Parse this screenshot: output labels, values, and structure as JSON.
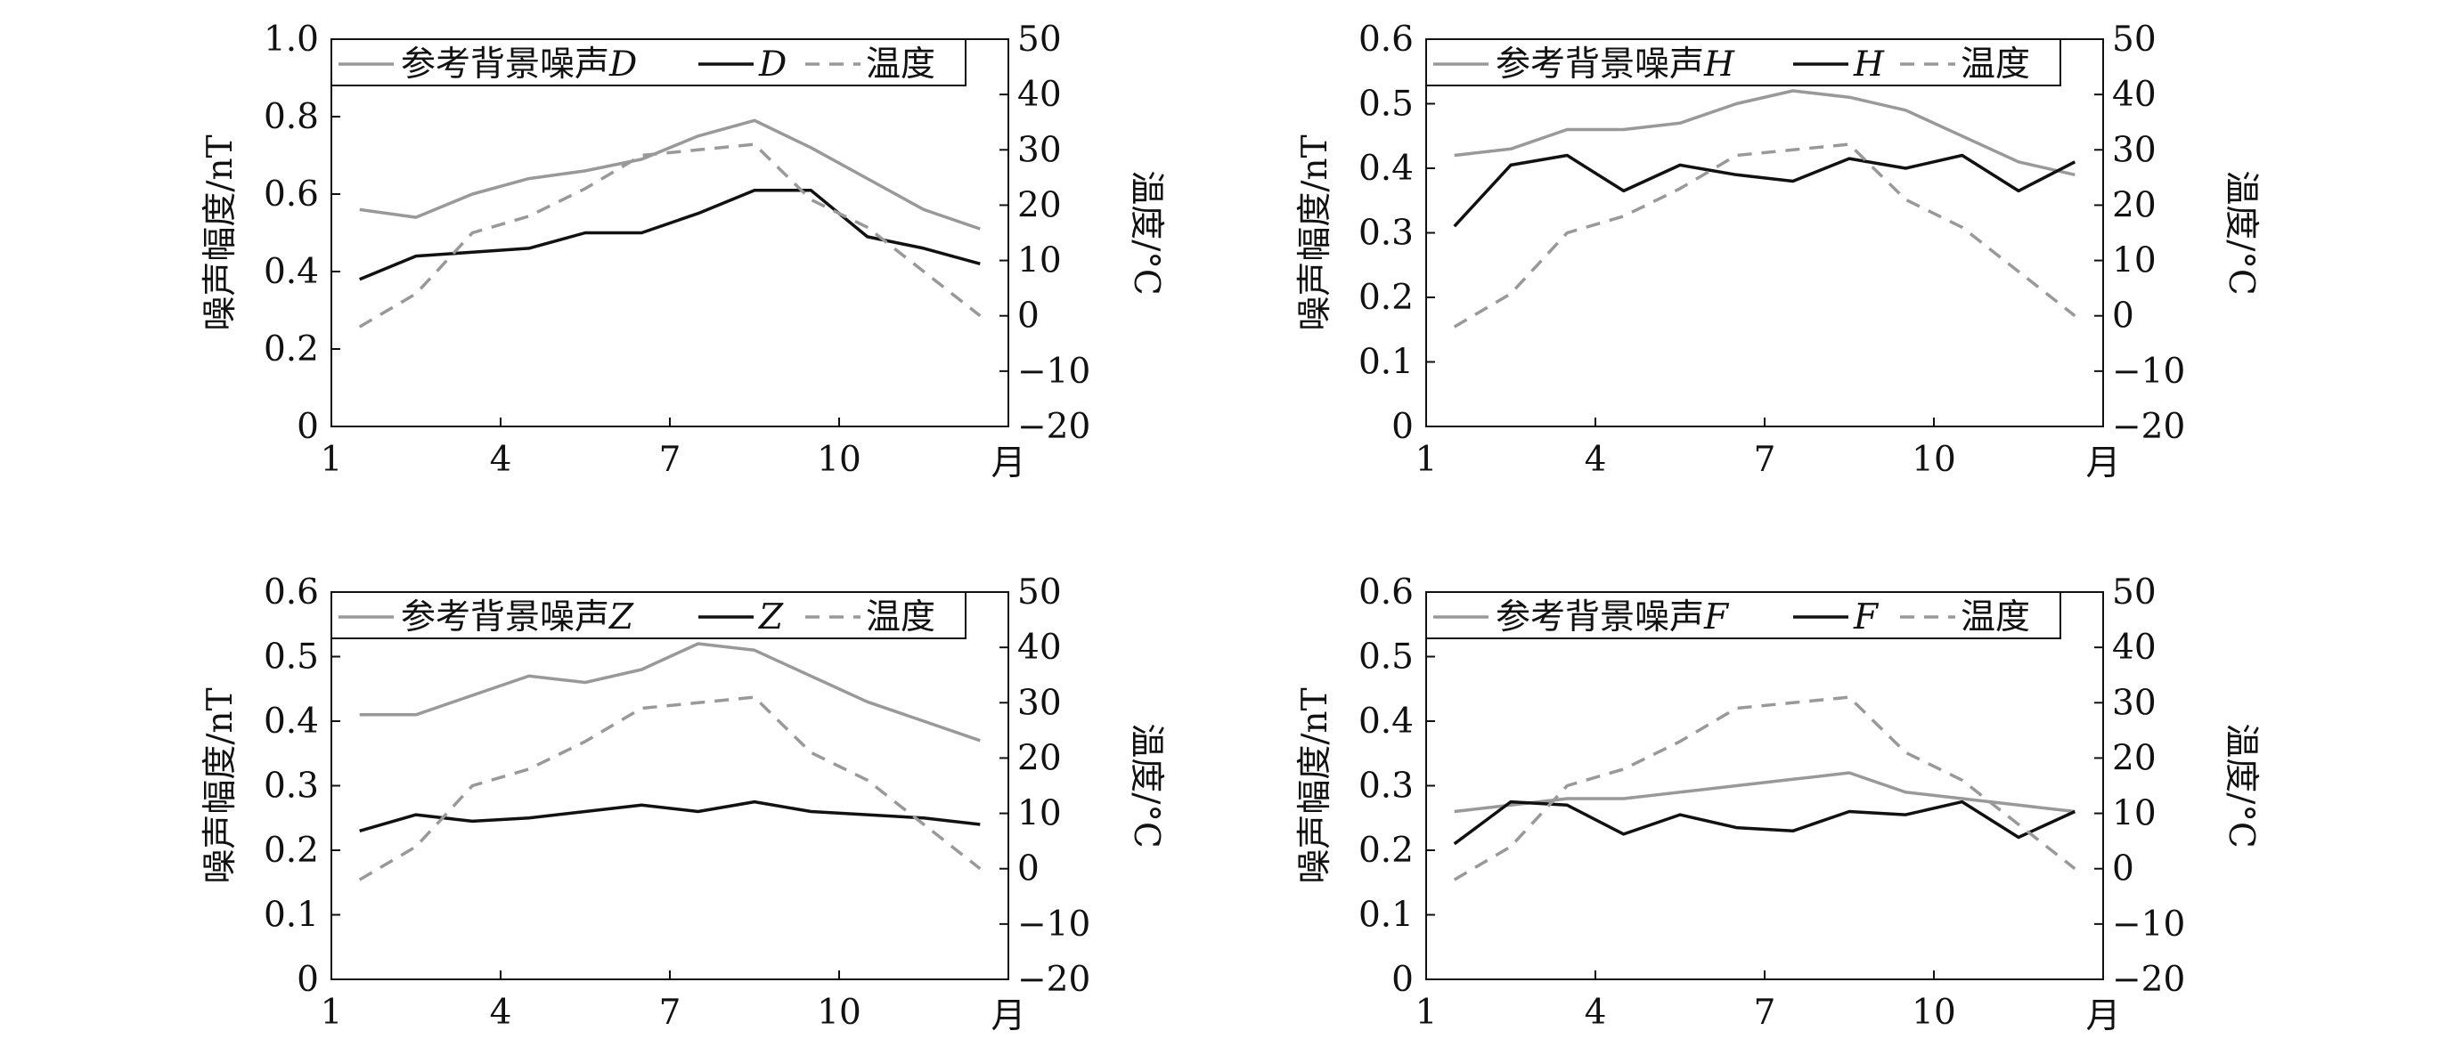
{
  "chart_data": [
    {
      "type": "line",
      "component": "D",
      "y_left_label": "噪声幅度/nT",
      "y_right_label": "温度/°C",
      "x_unit_label": "月",
      "ylim_left": [
        0,
        1.0
      ],
      "ylim_right": [
        -20,
        50
      ],
      "xlim": [
        1,
        13
      ],
      "x_ticks": [
        1,
        4,
        7,
        10
      ],
      "y_left_ticks": [
        "0",
        "0.2",
        "0.4",
        "0.6",
        "0.8",
        "1.0"
      ],
      "y_left_tick_values": [
        0,
        0.2,
        0.4,
        0.6,
        0.8,
        1.0
      ],
      "y_right_ticks": [
        "−20",
        "−10",
        "0",
        "10",
        "20",
        "30",
        "40",
        "50"
      ],
      "y_right_tick_values": [
        -20,
        -10,
        0,
        10,
        20,
        30,
        40,
        50
      ],
      "x": [
        1.5,
        2.5,
        3.5,
        4.5,
        5.5,
        6.5,
        7.5,
        8.5,
        9.5,
        10.5,
        11.5,
        12.5
      ],
      "legend": [
        "参考背景噪声D",
        "D",
        "温度"
      ],
      "series": [
        {
          "name": "参考背景噪声D",
          "axis": "left",
          "style": "solid",
          "color": "#999999",
          "values": [
            0.56,
            0.54,
            0.6,
            0.64,
            0.66,
            0.69,
            0.75,
            0.79,
            0.72,
            0.64,
            0.56,
            0.51
          ]
        },
        {
          "name": "D",
          "axis": "left",
          "style": "solid",
          "color": "#111111",
          "values": [
            0.38,
            0.44,
            0.45,
            0.46,
            0.5,
            0.5,
            0.55,
            0.61,
            0.61,
            0.49,
            0.46,
            0.42
          ]
        },
        {
          "name": "温度",
          "axis": "right",
          "style": "dashed",
          "color": "#999999",
          "values": [
            -2,
            4,
            15,
            18,
            23,
            29,
            30,
            31,
            21,
            16,
            8,
            0
          ]
        }
      ]
    },
    {
      "type": "line",
      "component": "H",
      "y_left_label": "噪声幅度/nT",
      "y_right_label": "温度/°C",
      "x_unit_label": "月",
      "ylim_left": [
        0,
        0.6
      ],
      "ylim_right": [
        -20,
        50
      ],
      "xlim": [
        1,
        13
      ],
      "x_ticks": [
        1,
        4,
        7,
        10
      ],
      "y_left_ticks": [
        "0",
        "0.1",
        "0.2",
        "0.3",
        "0.4",
        "0.5",
        "0.6"
      ],
      "y_left_tick_values": [
        0,
        0.1,
        0.2,
        0.3,
        0.4,
        0.5,
        0.6
      ],
      "y_right_ticks": [
        "−20",
        "−10",
        "0",
        "10",
        "20",
        "30",
        "40",
        "50"
      ],
      "y_right_tick_values": [
        -20,
        -10,
        0,
        10,
        20,
        30,
        40,
        50
      ],
      "x": [
        1.5,
        2.5,
        3.5,
        4.5,
        5.5,
        6.5,
        7.5,
        8.5,
        9.5,
        10.5,
        11.5,
        12.5
      ],
      "legend": [
        "参考背景噪声H",
        "H",
        "温度"
      ],
      "series": [
        {
          "name": "参考背景噪声H",
          "axis": "left",
          "style": "solid",
          "color": "#999999",
          "values": [
            0.42,
            0.43,
            0.46,
            0.46,
            0.47,
            0.5,
            0.52,
            0.51,
            0.49,
            0.45,
            0.41,
            0.39
          ]
        },
        {
          "name": "H",
          "axis": "left",
          "style": "solid",
          "color": "#111111",
          "values": [
            0.31,
            0.405,
            0.42,
            0.365,
            0.405,
            0.39,
            0.38,
            0.415,
            0.4,
            0.42,
            0.365,
            0.41
          ]
        },
        {
          "name": "温度",
          "axis": "right",
          "style": "dashed",
          "color": "#999999",
          "values": [
            -2,
            4,
            15,
            18,
            23,
            29,
            30,
            31,
            21,
            16,
            8,
            0
          ]
        }
      ]
    },
    {
      "type": "line",
      "component": "Z",
      "y_left_label": "噪声幅度/nT",
      "y_right_label": "温度/°C",
      "x_unit_label": "月",
      "ylim_left": [
        0,
        0.6
      ],
      "ylim_right": [
        -20,
        50
      ],
      "xlim": [
        1,
        13
      ],
      "x_ticks": [
        1,
        4,
        7,
        10
      ],
      "y_left_ticks": [
        "0",
        "0.1",
        "0.2",
        "0.3",
        "0.4",
        "0.5",
        "0.6"
      ],
      "y_left_tick_values": [
        0,
        0.1,
        0.2,
        0.3,
        0.4,
        0.5,
        0.6
      ],
      "y_right_ticks": [
        "−20",
        "−10",
        "0",
        "10",
        "20",
        "30",
        "40",
        "50"
      ],
      "y_right_tick_values": [
        -20,
        -10,
        0,
        10,
        20,
        30,
        40,
        50
      ],
      "x": [
        1.5,
        2.5,
        3.5,
        4.5,
        5.5,
        6.5,
        7.5,
        8.5,
        9.5,
        10.5,
        11.5,
        12.5
      ],
      "legend": [
        "参考背景噪声Z",
        "Z",
        "温度"
      ],
      "series": [
        {
          "name": "参考背景噪声Z",
          "axis": "left",
          "style": "solid",
          "color": "#999999",
          "values": [
            0.41,
            0.41,
            0.44,
            0.47,
            0.46,
            0.48,
            0.52,
            0.51,
            0.47,
            0.43,
            0.4,
            0.37
          ]
        },
        {
          "name": "Z",
          "axis": "left",
          "style": "solid",
          "color": "#111111",
          "values": [
            0.23,
            0.255,
            0.245,
            0.25,
            0.26,
            0.27,
            0.26,
            0.275,
            0.26,
            0.255,
            0.25,
            0.24
          ]
        },
        {
          "name": "温度",
          "axis": "right",
          "style": "dashed",
          "color": "#999999",
          "values": [
            -2,
            4,
            15,
            18,
            23,
            29,
            30,
            31,
            21,
            16,
            8,
            0
          ]
        }
      ]
    },
    {
      "type": "line",
      "component": "F",
      "y_left_label": "噪声幅度/nT",
      "y_right_label": "温度/°C",
      "x_unit_label": "月",
      "ylim_left": [
        0,
        0.6
      ],
      "ylim_right": [
        -20,
        50
      ],
      "xlim": [
        1,
        13
      ],
      "x_ticks": [
        1,
        4,
        7,
        10
      ],
      "y_left_ticks": [
        "0",
        "0.1",
        "0.2",
        "0.3",
        "0.4",
        "0.5",
        "0.6"
      ],
      "y_left_tick_values": [
        0,
        0.1,
        0.2,
        0.3,
        0.4,
        0.5,
        0.6
      ],
      "y_right_ticks": [
        "−20",
        "−10",
        "0",
        "10",
        "20",
        "30",
        "40",
        "50"
      ],
      "y_right_tick_values": [
        -20,
        -10,
        0,
        10,
        20,
        30,
        40,
        50
      ],
      "x": [
        1.5,
        2.5,
        3.5,
        4.5,
        5.5,
        6.5,
        7.5,
        8.5,
        9.5,
        10.5,
        11.5,
        12.5
      ],
      "legend": [
        "参考背景噪声F",
        "F",
        "温度"
      ],
      "series": [
        {
          "name": "参考背景噪声F",
          "axis": "left",
          "style": "solid",
          "color": "#999999",
          "values": [
            0.26,
            0.27,
            0.28,
            0.28,
            0.29,
            0.3,
            0.31,
            0.32,
            0.29,
            0.28,
            0.27,
            0.26
          ]
        },
        {
          "name": "F",
          "axis": "left",
          "style": "solid",
          "color": "#111111",
          "values": [
            0.21,
            0.275,
            0.27,
            0.225,
            0.255,
            0.235,
            0.23,
            0.26,
            0.255,
            0.275,
            0.22,
            0.26
          ]
        },
        {
          "name": "温度",
          "axis": "right",
          "style": "dashed",
          "color": "#999999",
          "values": [
            -2,
            4,
            15,
            18,
            23,
            29,
            30,
            31,
            21,
            16,
            8,
            0
          ]
        }
      ]
    }
  ]
}
